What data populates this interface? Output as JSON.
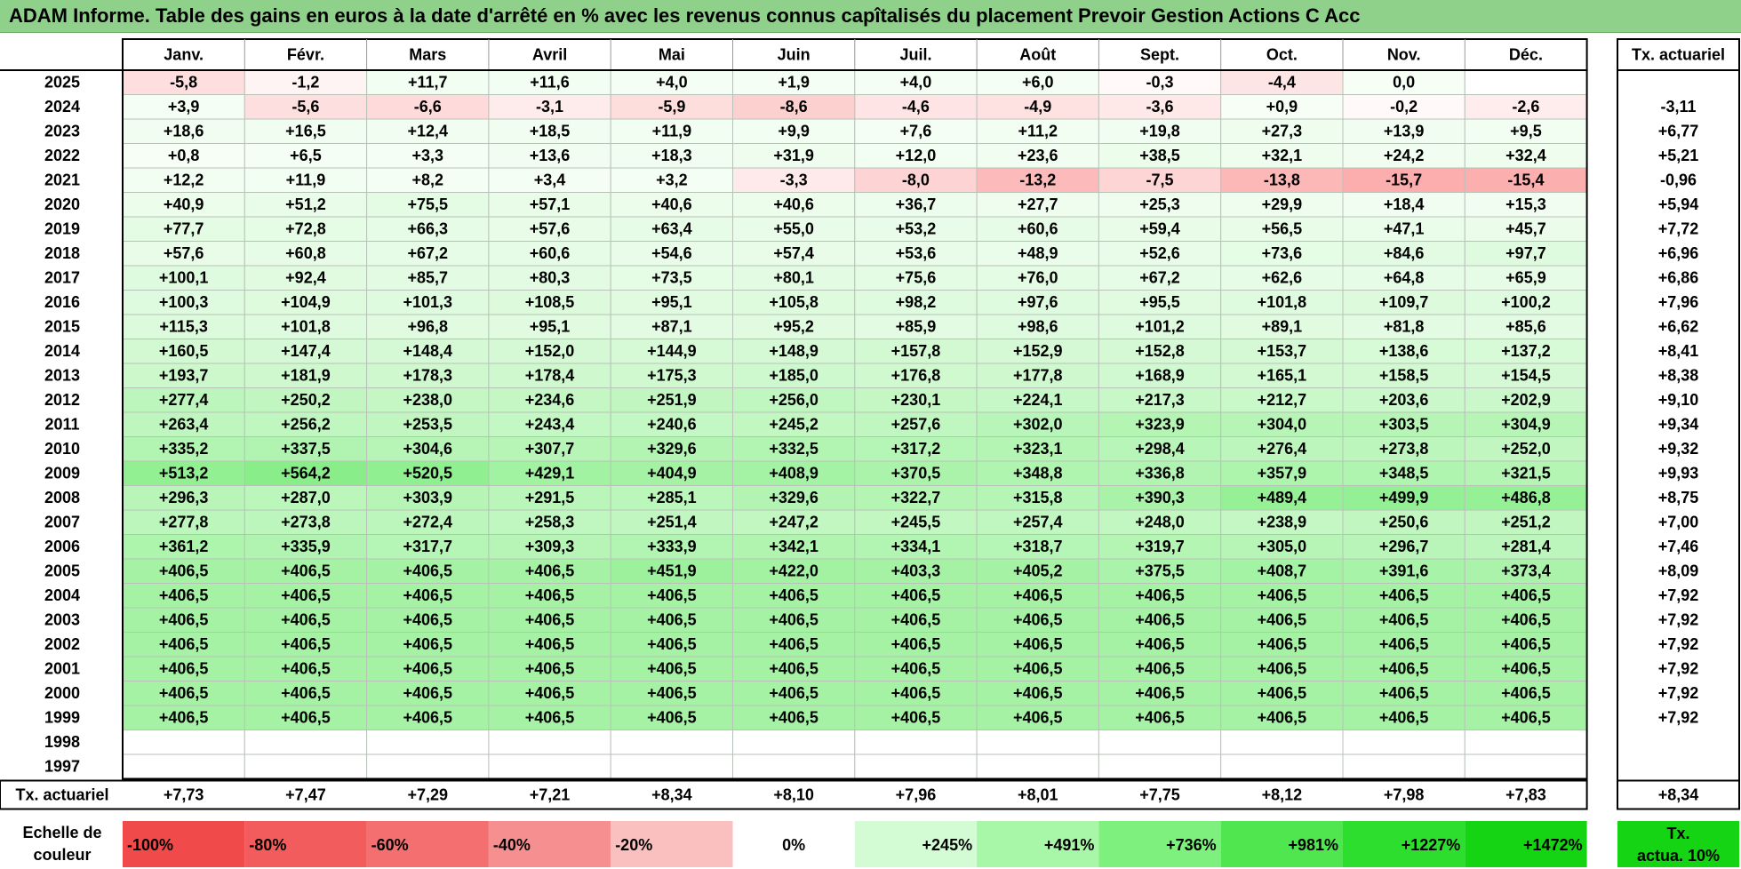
{
  "title": "ADAM Informe. Table des gains en euros à la date d'arrêté en % avec les revenus connus capîtalisés du placement Prevoir Gestion Actions C Acc",
  "months": [
    "Janv.",
    "Févr.",
    "Mars",
    "Avril",
    "Mai",
    "Juin",
    "Juil.",
    "Août",
    "Sept.",
    "Oct.",
    "Nov.",
    "Déc."
  ],
  "tx_header": "Tx. actuariel",
  "chart_data": {
    "type": "heatmap",
    "title": "ADAM Informe. Table des gains en euros à la date d'arrêté en % avec les revenus connus capîtalisés du placement Prevoir Gestion Actions C Acc",
    "x_categories": [
      "Janv.",
      "Févr.",
      "Mars",
      "Avril",
      "Mai",
      "Juin",
      "Juil.",
      "Août",
      "Sept.",
      "Oct.",
      "Nov.",
      "Déc."
    ],
    "rows": [
      {
        "year": "2025",
        "values": [
          "-5,8",
          "-1,2",
          "+11,7",
          "+11,6",
          "+4,0",
          "+1,9",
          "+4,0",
          "+6,0",
          "-0,3",
          "-4,4",
          "0,0",
          ""
        ],
        "tx": ""
      },
      {
        "year": "2024",
        "values": [
          "+3,9",
          "-5,6",
          "-6,6",
          "-3,1",
          "-5,9",
          "-8,6",
          "-4,6",
          "-4,9",
          "-3,6",
          "+0,9",
          "-0,2",
          "-2,6"
        ],
        "tx": "-3,11"
      },
      {
        "year": "2023",
        "values": [
          "+18,6",
          "+16,5",
          "+12,4",
          "+18,5",
          "+11,9",
          "+9,9",
          "+7,6",
          "+11,2",
          "+19,8",
          "+27,3",
          "+13,9",
          "+9,5"
        ],
        "tx": "+6,77"
      },
      {
        "year": "2022",
        "values": [
          "+0,8",
          "+6,5",
          "+3,3",
          "+13,6",
          "+18,3",
          "+31,9",
          "+12,0",
          "+23,6",
          "+38,5",
          "+32,1",
          "+24,2",
          "+32,4"
        ],
        "tx": "+5,21"
      },
      {
        "year": "2021",
        "values": [
          "+12,2",
          "+11,9",
          "+8,2",
          "+3,4",
          "+3,2",
          "-3,3",
          "-8,0",
          "-13,2",
          "-7,5",
          "-13,8",
          "-15,7",
          "-15,4"
        ],
        "tx": "-0,96"
      },
      {
        "year": "2020",
        "values": [
          "+40,9",
          "+51,2",
          "+75,5",
          "+57,1",
          "+40,6",
          "+40,6",
          "+36,7",
          "+27,7",
          "+25,3",
          "+29,9",
          "+18,4",
          "+15,3"
        ],
        "tx": "+5,94"
      },
      {
        "year": "2019",
        "values": [
          "+77,7",
          "+72,8",
          "+66,3",
          "+57,6",
          "+63,4",
          "+55,0",
          "+53,2",
          "+60,6",
          "+59,4",
          "+56,5",
          "+47,1",
          "+45,7"
        ],
        "tx": "+7,72"
      },
      {
        "year": "2018",
        "values": [
          "+57,6",
          "+60,8",
          "+67,2",
          "+60,6",
          "+54,6",
          "+57,4",
          "+53,6",
          "+48,9",
          "+52,6",
          "+73,6",
          "+84,6",
          "+97,7"
        ],
        "tx": "+6,96"
      },
      {
        "year": "2017",
        "values": [
          "+100,1",
          "+92,4",
          "+85,7",
          "+80,3",
          "+73,5",
          "+80,1",
          "+75,6",
          "+76,0",
          "+67,2",
          "+62,6",
          "+64,8",
          "+65,9"
        ],
        "tx": "+6,86"
      },
      {
        "year": "2016",
        "values": [
          "+100,3",
          "+104,9",
          "+101,3",
          "+108,5",
          "+95,1",
          "+105,8",
          "+98,2",
          "+97,6",
          "+95,5",
          "+101,8",
          "+109,7",
          "+100,2"
        ],
        "tx": "+7,96"
      },
      {
        "year": "2015",
        "values": [
          "+115,3",
          "+101,8",
          "+96,8",
          "+95,1",
          "+87,1",
          "+95,2",
          "+85,9",
          "+98,6",
          "+101,2",
          "+89,1",
          "+81,8",
          "+85,6"
        ],
        "tx": "+6,62"
      },
      {
        "year": "2014",
        "values": [
          "+160,5",
          "+147,4",
          "+148,4",
          "+152,0",
          "+144,9",
          "+148,9",
          "+157,8",
          "+152,9",
          "+152,8",
          "+153,7",
          "+138,6",
          "+137,2"
        ],
        "tx": "+8,41"
      },
      {
        "year": "2013",
        "values": [
          "+193,7",
          "+181,9",
          "+178,3",
          "+178,4",
          "+175,3",
          "+185,0",
          "+176,8",
          "+177,8",
          "+168,9",
          "+165,1",
          "+158,5",
          "+154,5"
        ],
        "tx": "+8,38"
      },
      {
        "year": "2012",
        "values": [
          "+277,4",
          "+250,2",
          "+238,0",
          "+234,6",
          "+251,9",
          "+256,0",
          "+230,1",
          "+224,1",
          "+217,3",
          "+212,7",
          "+203,6",
          "+202,9"
        ],
        "tx": "+9,10"
      },
      {
        "year": "2011",
        "values": [
          "+263,4",
          "+256,2",
          "+253,5",
          "+243,4",
          "+240,6",
          "+245,2",
          "+257,6",
          "+302,0",
          "+323,9",
          "+304,0",
          "+303,5",
          "+304,9"
        ],
        "tx": "+9,34"
      },
      {
        "year": "2010",
        "values": [
          "+335,2",
          "+337,5",
          "+304,6",
          "+307,7",
          "+329,6",
          "+332,5",
          "+317,2",
          "+323,1",
          "+298,4",
          "+276,4",
          "+273,8",
          "+252,0"
        ],
        "tx": "+9,32"
      },
      {
        "year": "2009",
        "values": [
          "+513,2",
          "+564,2",
          "+520,5",
          "+429,1",
          "+404,9",
          "+408,9",
          "+370,5",
          "+348,8",
          "+336,8",
          "+357,9",
          "+348,5",
          "+321,5"
        ],
        "tx": "+9,93"
      },
      {
        "year": "2008",
        "values": [
          "+296,3",
          "+287,0",
          "+303,9",
          "+291,5",
          "+285,1",
          "+329,6",
          "+322,7",
          "+315,8",
          "+390,3",
          "+489,4",
          "+499,9",
          "+486,8"
        ],
        "tx": "+8,75"
      },
      {
        "year": "2007",
        "values": [
          "+277,8",
          "+273,8",
          "+272,4",
          "+258,3",
          "+251,4",
          "+247,2",
          "+245,5",
          "+257,4",
          "+248,0",
          "+238,9",
          "+250,6",
          "+251,2"
        ],
        "tx": "+7,00"
      },
      {
        "year": "2006",
        "values": [
          "+361,2",
          "+335,9",
          "+317,7",
          "+309,3",
          "+333,9",
          "+342,1",
          "+334,1",
          "+318,7",
          "+319,7",
          "+305,0",
          "+296,7",
          "+281,4"
        ],
        "tx": "+7,46"
      },
      {
        "year": "2005",
        "values": [
          "+406,5",
          "+406,5",
          "+406,5",
          "+406,5",
          "+451,9",
          "+422,0",
          "+403,3",
          "+405,2",
          "+375,5",
          "+408,7",
          "+391,6",
          "+373,4"
        ],
        "tx": "+8,09"
      },
      {
        "year": "2004",
        "values": [
          "+406,5",
          "+406,5",
          "+406,5",
          "+406,5",
          "+406,5",
          "+406,5",
          "+406,5",
          "+406,5",
          "+406,5",
          "+406,5",
          "+406,5",
          "+406,5"
        ],
        "tx": "+7,92"
      },
      {
        "year": "2003",
        "values": [
          "+406,5",
          "+406,5",
          "+406,5",
          "+406,5",
          "+406,5",
          "+406,5",
          "+406,5",
          "+406,5",
          "+406,5",
          "+406,5",
          "+406,5",
          "+406,5"
        ],
        "tx": "+7,92"
      },
      {
        "year": "2002",
        "values": [
          "+406,5",
          "+406,5",
          "+406,5",
          "+406,5",
          "+406,5",
          "+406,5",
          "+406,5",
          "+406,5",
          "+406,5",
          "+406,5",
          "+406,5",
          "+406,5"
        ],
        "tx": "+7,92"
      },
      {
        "year": "2001",
        "values": [
          "+406,5",
          "+406,5",
          "+406,5",
          "+406,5",
          "+406,5",
          "+406,5",
          "+406,5",
          "+406,5",
          "+406,5",
          "+406,5",
          "+406,5",
          "+406,5"
        ],
        "tx": "+7,92"
      },
      {
        "year": "2000",
        "values": [
          "+406,5",
          "+406,5",
          "+406,5",
          "+406,5",
          "+406,5",
          "+406,5",
          "+406,5",
          "+406,5",
          "+406,5",
          "+406,5",
          "+406,5",
          "+406,5"
        ],
        "tx": "+7,92"
      },
      {
        "year": "1999",
        "values": [
          "+406,5",
          "+406,5",
          "+406,5",
          "+406,5",
          "+406,5",
          "+406,5",
          "+406,5",
          "+406,5",
          "+406,5",
          "+406,5",
          "+406,5",
          "+406,5"
        ],
        "tx": "+7,92"
      },
      {
        "year": "1998",
        "values": [
          "",
          "",
          "",
          "",
          "",
          "",
          "",
          "",
          "",
          "",
          "",
          ""
        ],
        "tx": ""
      },
      {
        "year": "1997",
        "values": [
          "",
          "",
          "",
          "",
          "",
          "",
          "",
          "",
          "",
          "",
          "",
          ""
        ],
        "tx": ""
      }
    ],
    "summary": {
      "label": "Tx. actuariel",
      "values": [
        "+7,73",
        "+7,47",
        "+7,29",
        "+7,21",
        "+8,34",
        "+8,10",
        "+7,96",
        "+8,01",
        "+7,75",
        "+8,12",
        "+7,98",
        "+7,83"
      ],
      "tx": "+8,34"
    },
    "scale": {
      "label": "Echelle de couleur",
      "steps": [
        {
          "label": "-100%",
          "value": -100,
          "color": "#f04a4a"
        },
        {
          "label": "-80%",
          "value": -80,
          "color": "#f25c5c"
        },
        {
          "label": "-60%",
          "value": -60,
          "color": "#f46f6f"
        },
        {
          "label": "-40%",
          "value": -40,
          "color": "#f68f8f"
        },
        {
          "label": "-20%",
          "value": -20,
          "color": "#fac0c0"
        },
        {
          "label": "0%",
          "value": 0,
          "color": "#ffffff"
        },
        {
          "label": "+245%",
          "value": 245,
          "color": "#d4fcd4"
        },
        {
          "label": "+491%",
          "value": 491,
          "color": "#a8f7a8"
        },
        {
          "label": "+736%",
          "value": 736,
          "color": "#7df07d"
        },
        {
          "label": "+981%",
          "value": 981,
          "color": "#50e650"
        },
        {
          "label": "+1227%",
          "value": 1227,
          "color": "#2ede2e"
        },
        {
          "label": "+1472%",
          "value": 1472,
          "color": "#14d414"
        }
      ],
      "ref_label": "Tx. actua. 10%",
      "ref_color": "#14d414"
    }
  }
}
